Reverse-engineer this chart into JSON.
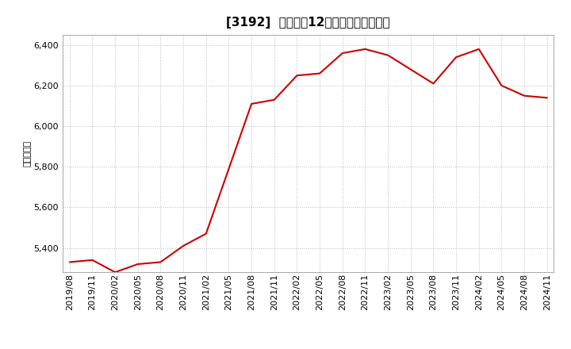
{
  "title": "[3192]  売上高の12か月移動合計の推移",
  "ylabel": "（百万円）",
  "line_color": "#cc0000",
  "background_color": "#ffffff",
  "grid_color": "#bbbbbb",
  "ylim": [
    5280,
    6450
  ],
  "yticks": [
    5400,
    5600,
    5800,
    6000,
    6200,
    6400
  ],
  "dates": [
    "2019/08",
    "2019/11",
    "2020/02",
    "2020/05",
    "2020/08",
    "2020/11",
    "2021/02",
    "2021/05",
    "2021/08",
    "2021/11",
    "2022/02",
    "2022/05",
    "2022/08",
    "2022/11",
    "2023/02",
    "2023/05",
    "2023/08",
    "2023/11",
    "2024/02",
    "2024/05",
    "2024/08",
    "2024/11"
  ],
  "values": [
    5330,
    5340,
    5280,
    5320,
    5330,
    5410,
    5470,
    5790,
    6110,
    6130,
    6250,
    6260,
    6360,
    6380,
    6350,
    6280,
    6210,
    6340,
    6380,
    6200,
    6150,
    6140
  ],
  "title_fontsize": 11,
  "ylabel_fontsize": 8,
  "tick_fontsize": 8
}
